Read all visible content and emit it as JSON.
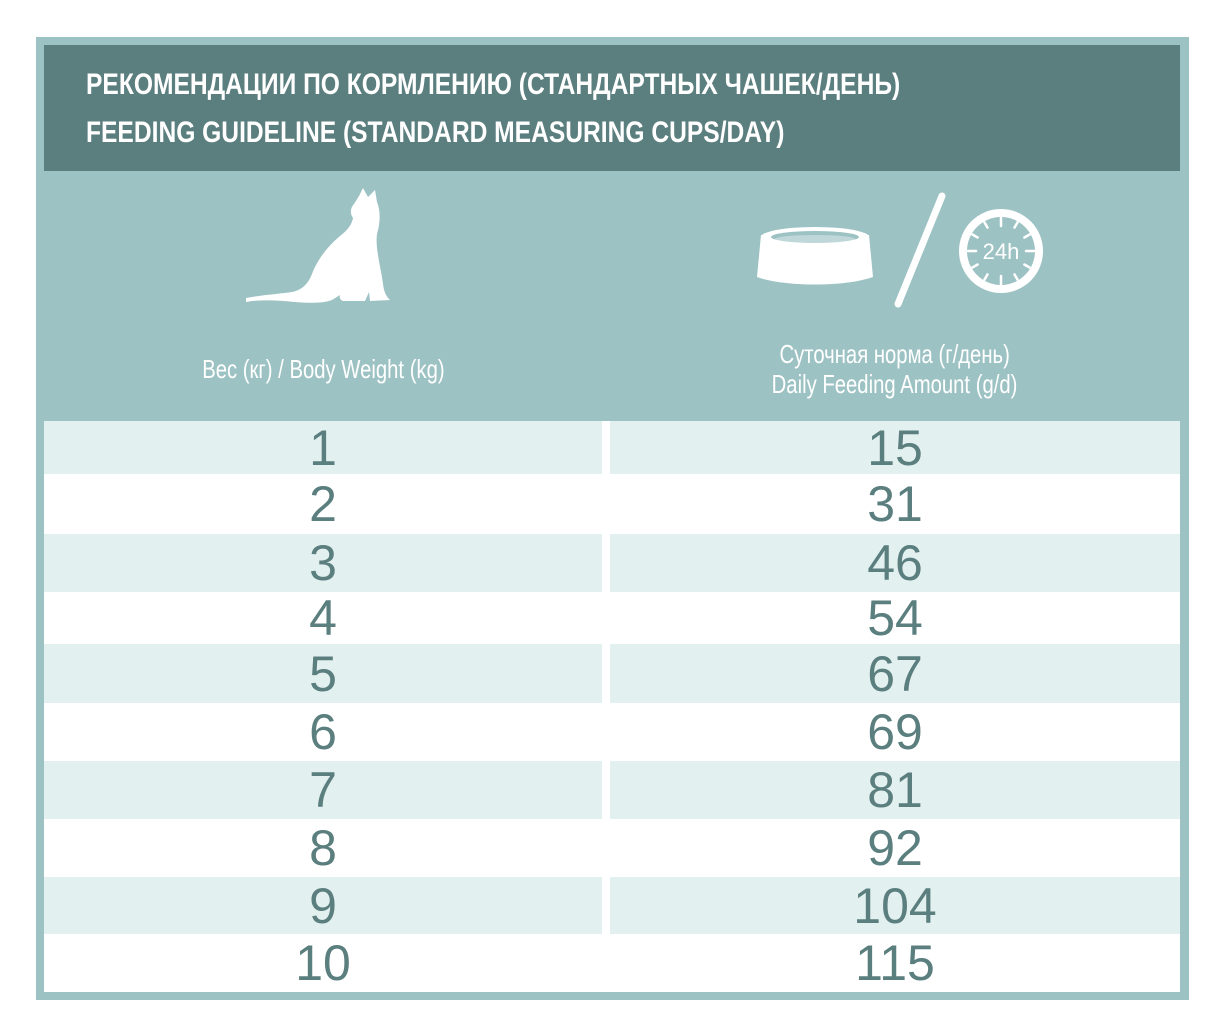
{
  "title": {
    "line1": "РЕКОМЕНДАЦИИ ПО КОРМЛЕНИЮ (СТАНДАРТНЫХ ЧАШЕК/ДЕНЬ)",
    "line2": "FEEDING GUIDELINE (STANDARD MEASURING CUPS/DAY)"
  },
  "icons": {
    "cat": "cat-silhouette-icon",
    "bowl": "food-bowl-icon",
    "clock": "clock-24h-icon",
    "clock_label": "24h"
  },
  "columns": {
    "weight": "Вес (кг) / Body Weight (kg)",
    "amount_line1": "Суточная норма (г/день)",
    "amount_line2": "Daily Feeding Amount (g/d)"
  },
  "rows": [
    {
      "weight": "1",
      "amount": "15"
    },
    {
      "weight": "2",
      "amount": "31"
    },
    {
      "weight": "3",
      "amount": "46"
    },
    {
      "weight": "4",
      "amount": "54"
    },
    {
      "weight": "5",
      "amount": "67"
    },
    {
      "weight": "6",
      "amount": "69"
    },
    {
      "weight": "7",
      "amount": "81"
    },
    {
      "weight": "8",
      "amount": "92"
    },
    {
      "weight": "9",
      "amount": "104"
    },
    {
      "weight": "10",
      "amount": "115"
    }
  ],
  "colors": {
    "frame": "#9dc2c3",
    "title_band": "#5b7e7e",
    "row_shade": "#e3f0f0",
    "row_plain": "#ffffff",
    "number_text": "#5b7e7e"
  }
}
